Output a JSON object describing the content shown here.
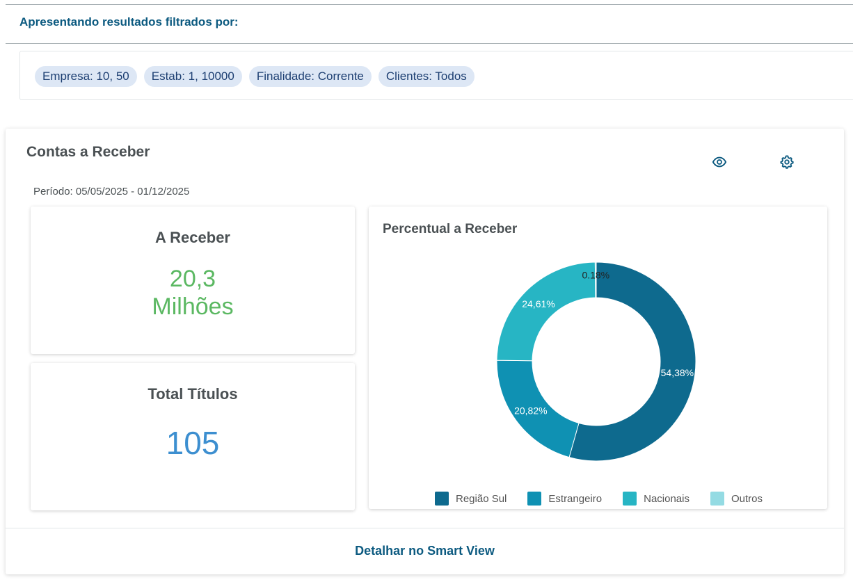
{
  "filter": {
    "heading": "Apresentando resultados filtrados por:",
    "chips": [
      "Empresa: 10, 50",
      "Estab: 1, 10000",
      "Finalidade: Corrente",
      "Clientes: Todos"
    ]
  },
  "widget": {
    "title": "Contas a Receber",
    "period": "Período: 05/05/2025 - 01/12/2025",
    "icons": {
      "view": "eye-icon",
      "settings": "gear-icon"
    },
    "kpis": {
      "receivable": {
        "title": "A Receber",
        "value": "20,3",
        "unit": "Milhões",
        "color": "#5bb862"
      },
      "titles": {
        "title": "Total Títulos",
        "value": "105",
        "color": "#3d8fd0"
      }
    },
    "footer_link": "Detalhar no Smart View"
  },
  "chart_data": {
    "type": "pie",
    "title": "Percentual a Receber",
    "categories": [
      "Região Sul",
      "Estrangeiro",
      "Nacionais",
      "Outros"
    ],
    "values": [
      54.38,
      20.82,
      24.61,
      0.18
    ],
    "labels": [
      "54,38%",
      "20,82%",
      "24,61%",
      "0.18%"
    ],
    "colors": [
      "#0e6a8e",
      "#0f91b3",
      "#27b5c4",
      "#94dbe3"
    ],
    "label_colors": [
      "#ffffff",
      "#ffffff",
      "#ffffff",
      "#222222"
    ],
    "donut": true,
    "legend": "bottom"
  }
}
